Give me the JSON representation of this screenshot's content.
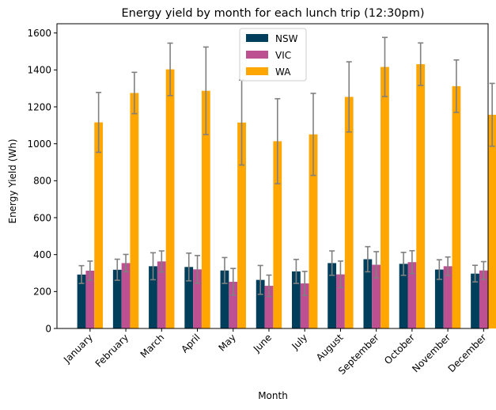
{
  "chart_data": {
    "type": "bar",
    "title": "Energy yield by month for each lunch trip (12:30pm)",
    "xlabel": "Month",
    "ylabel": "Energy Yield (Wh)",
    "ylim": [
      0,
      1650
    ],
    "yticks": [
      0,
      200,
      400,
      600,
      800,
      1000,
      1200,
      1400,
      1600
    ],
    "legend_position": "top-center",
    "grid": false,
    "categories": [
      "January",
      "February",
      "March",
      "April",
      "May",
      "June",
      "July",
      "August",
      "September",
      "October",
      "November",
      "December"
    ],
    "series": [
      {
        "name": "NSW",
        "color": "#003f5c",
        "values": [
          292,
          318,
          337,
          333,
          314,
          263,
          309,
          354,
          375,
          350,
          319,
          297
        ],
        "errors": [
          48,
          57,
          73,
          75,
          70,
          78,
          65,
          66,
          68,
          62,
          53,
          45
        ]
      },
      {
        "name": "VIC",
        "color": "#bc5090",
        "values": [
          313,
          354,
          363,
          320,
          253,
          231,
          244,
          293,
          345,
          359,
          337,
          314
        ],
        "errors": [
          52,
          47,
          57,
          75,
          72,
          58,
          65,
          72,
          71,
          62,
          50,
          48
        ]
      },
      {
        "name": "WA",
        "color": "#ffa600",
        "values": [
          1116,
          1275,
          1403,
          1287,
          1115,
          1014,
          1051,
          1254,
          1416,
          1431,
          1312,
          1157
        ],
        "errors": [
          162,
          112,
          142,
          237,
          230,
          230,
          222,
          190,
          160,
          115,
          142,
          170
        ]
      }
    ],
    "error_bar_color": "#808080"
  }
}
